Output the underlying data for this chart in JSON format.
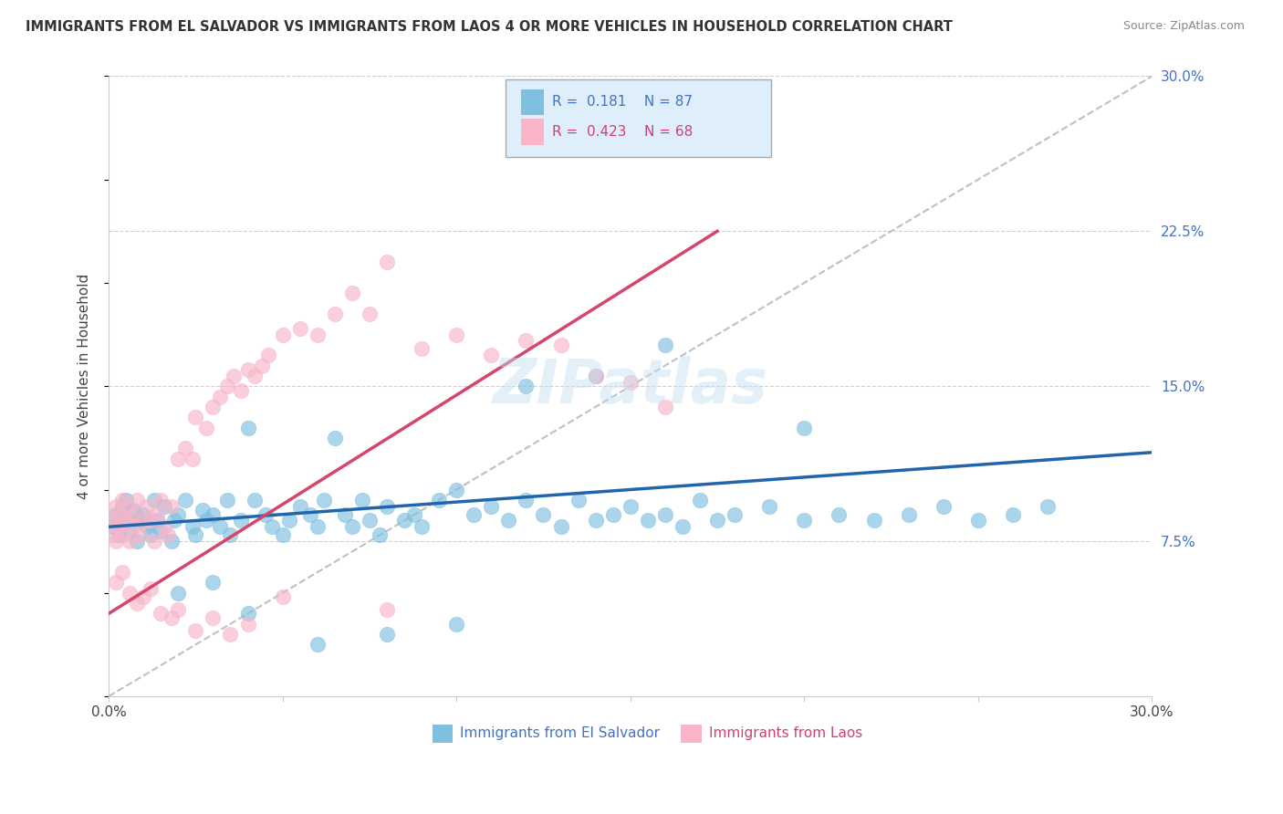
{
  "title": "IMMIGRANTS FROM EL SALVADOR VS IMMIGRANTS FROM LAOS 4 OR MORE VEHICLES IN HOUSEHOLD CORRELATION CHART",
  "source": "Source: ZipAtlas.com",
  "ylabel": "4 or more Vehicles in Household",
  "xlim": [
    0.0,
    0.3
  ],
  "ylim": [
    0.0,
    0.3
  ],
  "xticks": [
    0.0,
    0.05,
    0.1,
    0.15,
    0.2,
    0.25,
    0.3
  ],
  "xticklabels": [
    "0.0%",
    "",
    "",
    "",
    "",
    "",
    "30.0%"
  ],
  "yticks_right": [
    0.075,
    0.15,
    0.225,
    0.3
  ],
  "yticklabels_right": [
    "7.5%",
    "15.0%",
    "22.5%",
    "30.0%"
  ],
  "blue_color": "#7fbfdf",
  "pink_color": "#f9b4c8",
  "blue_line_color": "#2166ac",
  "pink_line_color": "#d6456a",
  "ref_line_color": "#c0c0c0",
  "R_blue": 0.181,
  "N_blue": 87,
  "R_pink": 0.423,
  "N_pink": 68,
  "watermark": "ZIPatlas",
  "blue_scatter_x": [
    0.001,
    0.002,
    0.003,
    0.004,
    0.005,
    0.005,
    0.006,
    0.007,
    0.008,
    0.009,
    0.01,
    0.011,
    0.012,
    0.013,
    0.014,
    0.015,
    0.016,
    0.018,
    0.019,
    0.02,
    0.022,
    0.024,
    0.025,
    0.027,
    0.028,
    0.03,
    0.032,
    0.034,
    0.035,
    0.038,
    0.04,
    0.042,
    0.045,
    0.047,
    0.05,
    0.052,
    0.055,
    0.058,
    0.06,
    0.062,
    0.065,
    0.068,
    0.07,
    0.073,
    0.075,
    0.078,
    0.08,
    0.085,
    0.088,
    0.09,
    0.095,
    0.1,
    0.105,
    0.11,
    0.115,
    0.12,
    0.125,
    0.13,
    0.135,
    0.14,
    0.145,
    0.15,
    0.155,
    0.16,
    0.165,
    0.17,
    0.175,
    0.18,
    0.19,
    0.2,
    0.21,
    0.22,
    0.23,
    0.24,
    0.25,
    0.26,
    0.27,
    0.02,
    0.03,
    0.04,
    0.06,
    0.08,
    0.1,
    0.12,
    0.14,
    0.16,
    0.2
  ],
  "blue_scatter_y": [
    0.082,
    0.088,
    0.078,
    0.092,
    0.085,
    0.095,
    0.08,
    0.09,
    0.075,
    0.085,
    0.088,
    0.082,
    0.078,
    0.095,
    0.085,
    0.08,
    0.092,
    0.075,
    0.085,
    0.088,
    0.095,
    0.082,
    0.078,
    0.09,
    0.085,
    0.088,
    0.082,
    0.095,
    0.078,
    0.085,
    0.13,
    0.095,
    0.088,
    0.082,
    0.078,
    0.085,
    0.092,
    0.088,
    0.082,
    0.095,
    0.125,
    0.088,
    0.082,
    0.095,
    0.085,
    0.078,
    0.092,
    0.085,
    0.088,
    0.082,
    0.095,
    0.1,
    0.088,
    0.092,
    0.085,
    0.095,
    0.088,
    0.082,
    0.095,
    0.085,
    0.088,
    0.092,
    0.085,
    0.088,
    0.082,
    0.095,
    0.085,
    0.088,
    0.092,
    0.085,
    0.088,
    0.085,
    0.088,
    0.092,
    0.085,
    0.088,
    0.092,
    0.05,
    0.055,
    0.04,
    0.025,
    0.03,
    0.035,
    0.15,
    0.155,
    0.17,
    0.13
  ],
  "pink_scatter_x": [
    0.001,
    0.001,
    0.002,
    0.002,
    0.003,
    0.003,
    0.004,
    0.004,
    0.005,
    0.005,
    0.006,
    0.007,
    0.007,
    0.008,
    0.009,
    0.01,
    0.011,
    0.012,
    0.013,
    0.014,
    0.015,
    0.016,
    0.017,
    0.018,
    0.02,
    0.022,
    0.024,
    0.025,
    0.028,
    0.03,
    0.032,
    0.034,
    0.036,
    0.038,
    0.04,
    0.042,
    0.044,
    0.046,
    0.05,
    0.055,
    0.06,
    0.065,
    0.07,
    0.075,
    0.08,
    0.09,
    0.1,
    0.11,
    0.12,
    0.13,
    0.14,
    0.15,
    0.16,
    0.002,
    0.004,
    0.006,
    0.008,
    0.01,
    0.012,
    0.015,
    0.018,
    0.02,
    0.025,
    0.03,
    0.035,
    0.04,
    0.05,
    0.08
  ],
  "pink_scatter_y": [
    0.085,
    0.078,
    0.092,
    0.075,
    0.088,
    0.082,
    0.095,
    0.078,
    0.085,
    0.092,
    0.075,
    0.088,
    0.082,
    0.095,
    0.078,
    0.085,
    0.092,
    0.085,
    0.075,
    0.088,
    0.095,
    0.082,
    0.078,
    0.092,
    0.115,
    0.12,
    0.115,
    0.135,
    0.13,
    0.14,
    0.145,
    0.15,
    0.155,
    0.148,
    0.158,
    0.155,
    0.16,
    0.165,
    0.175,
    0.178,
    0.175,
    0.185,
    0.195,
    0.185,
    0.21,
    0.168,
    0.175,
    0.165,
    0.172,
    0.17,
    0.155,
    0.152,
    0.14,
    0.055,
    0.06,
    0.05,
    0.045,
    0.048,
    0.052,
    0.04,
    0.038,
    0.042,
    0.032,
    0.038,
    0.03,
    0.035,
    0.048,
    0.042
  ],
  "pink_line_x_start": 0.0,
  "pink_line_x_end": 0.175,
  "pink_line_y_start": 0.04,
  "pink_line_y_end": 0.225,
  "blue_line_x_start": 0.0,
  "blue_line_x_end": 0.3,
  "blue_line_y_start": 0.082,
  "blue_line_y_end": 0.118
}
